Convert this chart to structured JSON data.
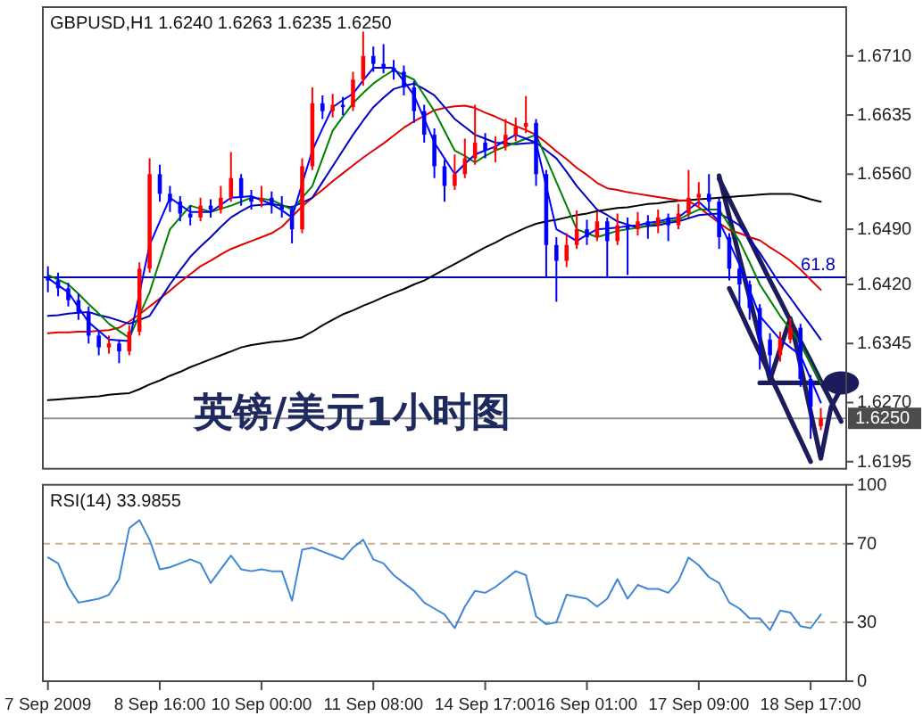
{
  "chart_data": [
    {
      "type": "candlestick",
      "title": "GBPUSD,H1 1.6240 1.6263 1.6235 1.6250",
      "annotations": [
        "英镑/美元1小时图",
        {
          "text": "61.8",
          "y": 1.6429
        }
      ],
      "categories": [
        null,
        null,
        null,
        null,
        null,
        null,
        null,
        null,
        null,
        null,
        null,
        null,
        null,
        null,
        null,
        null,
        null,
        null,
        null,
        null,
        null,
        null,
        null,
        null,
        null,
        null,
        null,
        null,
        null,
        null,
        null,
        null,
        null,
        null,
        null,
        null,
        null,
        null,
        null,
        null,
        null,
        null,
        null,
        null,
        null,
        null,
        null,
        null,
        null,
        null,
        null,
        null,
        null,
        null,
        null,
        null,
        null,
        null,
        null,
        null,
        null,
        null,
        null,
        null,
        null,
        null,
        null,
        null,
        null,
        null,
        null,
        null,
        null,
        null,
        null,
        null,
        null,
        null,
        null
      ],
      "ohlc": [
        [
          1.643,
          1.6443,
          1.641,
          1.6425
        ],
        [
          1.6425,
          1.6435,
          1.6405,
          1.6415
        ],
        [
          1.6415,
          1.6422,
          1.6392,
          1.64
        ],
        [
          1.64,
          1.6408,
          1.6375,
          1.6385
        ],
        [
          1.6385,
          1.6392,
          1.6345,
          1.6355
        ],
        [
          1.6355,
          1.6362,
          1.633,
          1.634
        ],
        [
          1.634,
          1.6355,
          1.6332,
          1.6345
        ],
        [
          1.6345,
          1.635,
          1.632,
          1.6335
        ],
        [
          1.6335,
          1.6368,
          1.633,
          1.636
        ],
        [
          1.636,
          1.6448,
          1.6355,
          1.644
        ],
        [
          1.644,
          1.658,
          1.6435,
          1.656
        ],
        [
          1.656,
          1.6572,
          1.6525,
          1.6535
        ],
        [
          1.6535,
          1.6545,
          1.6512,
          1.6525
        ],
        [
          1.6525,
          1.6532,
          1.65,
          1.651
        ],
        [
          1.651,
          1.652,
          1.6495,
          1.6505
        ],
        [
          1.6505,
          1.653,
          1.65,
          1.652
        ],
        [
          1.652,
          1.6528,
          1.6505,
          1.6515
        ],
        [
          1.6515,
          1.6545,
          1.651,
          1.653
        ],
        [
          1.653,
          1.6588,
          1.6525,
          1.6555
        ],
        [
          1.6555,
          1.656,
          1.652,
          1.653
        ],
        [
          1.653,
          1.654,
          1.6515,
          1.6525
        ],
        [
          1.6525,
          1.6545,
          1.6518,
          1.653
        ],
        [
          1.653,
          1.6538,
          1.651,
          1.652
        ],
        [
          1.652,
          1.6532,
          1.6505,
          1.6515
        ],
        [
          1.6515,
          1.652,
          1.6472,
          1.649
        ],
        [
          1.649,
          1.658,
          1.6485,
          1.657
        ],
        [
          1.657,
          1.667,
          1.6565,
          1.665
        ],
        [
          1.665,
          1.666,
          1.663,
          1.664
        ],
        [
          1.664,
          1.6662,
          1.6632,
          1.6648
        ],
        [
          1.6648,
          1.6658,
          1.6635,
          1.6645
        ],
        [
          1.6645,
          1.669,
          1.664,
          1.668
        ],
        [
          1.668,
          1.6741,
          1.6672,
          1.671
        ],
        [
          1.671,
          1.6722,
          1.669,
          1.67
        ],
        [
          1.67,
          1.6725,
          1.6688,
          1.6695
        ],
        [
          1.6695,
          1.6705,
          1.668,
          1.669
        ],
        [
          1.669,
          1.6698,
          1.666,
          1.667
        ],
        [
          1.667,
          1.6678,
          1.6625,
          1.664
        ],
        [
          1.664,
          1.6648,
          1.66,
          1.661
        ],
        [
          1.661,
          1.6618,
          1.6555,
          1.657
        ],
        [
          1.657,
          1.6578,
          1.6525,
          1.6545
        ],
        [
          1.6545,
          1.6585,
          1.654,
          1.656
        ],
        [
          1.656,
          1.6605,
          1.6555,
          1.658
        ],
        [
          1.658,
          1.6648,
          1.6572,
          1.66
        ],
        [
          1.66,
          1.6612,
          1.658,
          1.659
        ],
        [
          1.659,
          1.6608,
          1.6575,
          1.6595
        ],
        [
          1.6595,
          1.663,
          1.659,
          1.661
        ],
        [
          1.661,
          1.6632,
          1.6602,
          1.662
        ],
        [
          1.662,
          1.6659,
          1.6612,
          1.6625
        ],
        [
          1.6625,
          1.663,
          1.6545,
          1.656
        ],
        [
          1.656,
          1.6565,
          1.6429,
          1.647
        ],
        [
          1.647,
          1.648,
          1.6398,
          1.645
        ],
        [
          1.645,
          1.6485,
          1.6442,
          1.647
        ],
        [
          1.647,
          1.6514,
          1.6465,
          1.649
        ],
        [
          1.649,
          1.6502,
          1.647,
          1.648
        ],
        [
          1.648,
          1.6512,
          1.6475,
          1.65
        ],
        [
          1.65,
          1.6505,
          1.6429,
          1.6475
        ],
        [
          1.6475,
          1.651,
          1.647,
          1.6495
        ],
        [
          1.6495,
          1.6505,
          1.6432,
          1.649
        ],
        [
          1.649,
          1.6512,
          1.6482,
          1.65
        ],
        [
          1.65,
          1.6508,
          1.6478,
          1.6495
        ],
        [
          1.6495,
          1.6515,
          1.6485,
          1.6505
        ],
        [
          1.6505,
          1.651,
          1.6475,
          1.6495
        ],
        [
          1.6495,
          1.6522,
          1.649,
          1.651
        ],
        [
          1.651,
          1.6565,
          1.6505,
          1.653
        ],
        [
          1.653,
          1.655,
          1.652,
          1.6535
        ],
        [
          1.6535,
          1.656,
          1.6515,
          1.6525
        ],
        [
          1.6525,
          1.653,
          1.6465,
          1.648
        ],
        [
          1.648,
          1.6485,
          1.6425,
          1.644
        ],
        [
          1.644,
          1.6448,
          1.639,
          1.642
        ],
        [
          1.642,
          1.6425,
          1.6375,
          1.639
        ],
        [
          1.639,
          1.6395,
          1.6312,
          1.635
        ],
        [
          1.635,
          1.6358,
          1.6305,
          1.633
        ],
        [
          1.633,
          1.636,
          1.6322,
          1.635
        ],
        [
          1.635,
          1.6377,
          1.6345,
          1.6365
        ],
        [
          1.6365,
          1.637,
          1.629,
          1.63
        ],
        [
          1.63,
          1.6305,
          1.6224,
          1.6265
        ],
        [
          1.624,
          1.6263,
          1.6235,
          1.625
        ],
        null,
        null
      ],
      "colors": [
        "#0000ff",
        "#0000ff",
        "#0000ff",
        "#0000ff",
        "#0000ff",
        "#0000ff",
        "#ff0000",
        "#0000ff",
        "#ff0000",
        "#ff0000",
        "#ff0000",
        "#0000ff",
        "#0000ff",
        "#0000ff",
        "#0000ff",
        "#ff0000",
        "#0000ff",
        "#ff0000",
        "#ff0000",
        "#0000ff",
        "#0000ff",
        "#ff0000",
        "#0000ff",
        "#0000ff",
        "#0000ff",
        "#ff0000",
        "#ff0000",
        "#0000ff",
        "#ff0000",
        "#0000ff",
        "#ff0000",
        "#ff0000",
        "#0000ff",
        "#0000ff",
        "#0000ff",
        "#0000ff",
        "#0000ff",
        "#0000ff",
        "#0000ff",
        "#0000ff",
        "#ff0000",
        "#ff0000",
        "#ff0000",
        "#0000ff",
        "#ff0000",
        "#ff0000",
        "#ff0000",
        "#ff0000",
        "#0000ff",
        "#0000ff",
        "#0000ff",
        "#ff0000",
        "#ff0000",
        "#0000ff",
        "#ff0000",
        "#0000ff",
        "#ff0000",
        "#0000ff",
        "#ff0000",
        "#0000ff",
        "#ff0000",
        "#0000ff",
        "#ff0000",
        "#ff0000",
        "#ff0000",
        "#0000ff",
        "#0000ff",
        "#0000ff",
        "#0000ff",
        "#0000ff",
        "#0000ff",
        "#0000ff",
        "#ff0000",
        "#ff0000",
        "#0000ff",
        "#0000ff",
        "#ff0000",
        null,
        null
      ],
      "series": [
        {
          "type": "line",
          "color": "#1c1c5c",
          "values": [
            null,
            null,
            null,
            null,
            null,
            null,
            null,
            null,
            null,
            null,
            null,
            null,
            null,
            null,
            null,
            null,
            null,
            null,
            null,
            null,
            null,
            null,
            null,
            null,
            null,
            null,
            null,
            null,
            null,
            null,
            null,
            null,
            null,
            null,
            null,
            null,
            null,
            null,
            null,
            null,
            null,
            null,
            null,
            null,
            null,
            null,
            null,
            null,
            null,
            null,
            null,
            null,
            null,
            null,
            null,
            null,
            null,
            null,
            null,
            null,
            null,
            null,
            null,
            null,
            null,
            null,
            1.6554,
            1.6528,
            1.6502,
            1.6477,
            1.6451,
            1.6425,
            1.64,
            1.6374,
            1.6348,
            1.6323,
            1.6297,
            1.6272,
            1.6246
          ]
        },
        {
          "type": "line",
          "color": "#1c1c5c",
          "values": [
            null,
            null,
            null,
            null,
            null,
            null,
            null,
            null,
            null,
            null,
            null,
            null,
            null,
            null,
            null,
            null,
            null,
            null,
            null,
            null,
            null,
            null,
            null,
            null,
            null,
            null,
            null,
            null,
            null,
            null,
            null,
            null,
            null,
            null,
            null,
            null,
            null,
            null,
            null,
            null,
            null,
            null,
            null,
            null,
            null,
            null,
            null,
            null,
            null,
            null,
            null,
            null,
            null,
            null,
            null,
            null,
            null,
            null,
            null,
            null,
            null,
            null,
            null,
            null,
            null,
            null,
            null,
            1.6415,
            1.6388,
            1.636,
            1.6333,
            1.6305,
            1.6278,
            1.625,
            1.6223,
            1.6195,
            null,
            null,
            null
          ]
        },
        {
          "type": "line",
          "color": "#1c1c5c",
          "values": [
            null,
            null,
            null,
            null,
            null,
            null,
            null,
            null,
            null,
            null,
            null,
            null,
            null,
            null,
            null,
            null,
            null,
            null,
            null,
            null,
            null,
            null,
            null,
            null,
            null,
            null,
            null,
            null,
            null,
            null,
            null,
            null,
            null,
            null,
            null,
            null,
            null,
            null,
            null,
            null,
            null,
            null,
            null,
            null,
            null,
            null,
            null,
            null,
            null,
            null,
            null,
            null,
            null,
            null,
            null,
            null,
            null,
            null,
            null,
            null,
            null,
            null,
            null,
            null,
            null,
            null,
            1.6558,
            1.6506,
            1.6454,
            1.6403,
            1.6351,
            1.6299,
            1.6338,
            1.6377,
            1.6318,
            1.6258,
            1.6199,
            1.6264,
            1.6288
          ]
        },
        {
          "type": "line",
          "color": "#1c1c5c",
          "values": [
            null,
            null,
            null,
            null,
            null,
            null,
            null,
            null,
            null,
            null,
            null,
            null,
            null,
            null,
            null,
            null,
            null,
            null,
            null,
            null,
            null,
            null,
            null,
            null,
            null,
            null,
            null,
            null,
            null,
            null,
            null,
            null,
            null,
            null,
            null,
            null,
            null,
            null,
            null,
            null,
            null,
            null,
            null,
            null,
            null,
            null,
            null,
            null,
            null,
            null,
            null,
            null,
            null,
            null,
            null,
            null,
            null,
            null,
            null,
            null,
            null,
            null,
            null,
            null,
            null,
            null,
            null,
            null,
            null,
            null,
            1.6295,
            1.6295,
            1.6295,
            1.6295,
            1.6295,
            1.6295,
            1.6295,
            1.6295,
            1.6295
          ]
        },
        {
          "type": "line",
          "color": "#000000",
          "values": [
            1.6273,
            1.6274,
            1.6275,
            1.6276,
            1.6277,
            1.6278,
            1.628,
            1.6281,
            1.6282,
            1.6287,
            1.6293,
            1.6298,
            1.6304,
            1.6309,
            1.6315,
            1.632,
            1.6325,
            1.633,
            1.6335,
            1.634,
            1.6343,
            1.6345,
            1.6347,
            1.6348,
            1.635,
            1.6353,
            1.636,
            1.6368,
            1.6375,
            1.6382,
            1.6387,
            1.6393,
            1.6398,
            1.6404,
            1.6409,
            1.6414,
            1.642,
            1.6425,
            1.6432,
            1.6439,
            1.6446,
            1.6453,
            1.646,
            1.6467,
            1.6473,
            1.648,
            1.6486,
            1.6492,
            1.6497,
            1.65,
            1.6502,
            1.6505,
            1.6508,
            1.651,
            1.6513,
            1.6515,
            1.6517,
            1.6518,
            1.652,
            1.6522,
            1.6523,
            1.6525,
            1.6526,
            1.6527,
            1.6528,
            1.6529,
            1.653,
            1.6531,
            1.6532,
            1.6533,
            1.6534,
            1.6535,
            1.6535,
            1.6535,
            1.6532,
            1.6528,
            1.6525,
            null,
            null
          ]
        },
        {
          "type": "line",
          "color": "#e00000",
          "values": [
            1.6358,
            1.6359,
            1.6359,
            1.636,
            1.636,
            1.6361,
            1.6362,
            1.6365,
            1.6373,
            1.6382,
            1.6392,
            1.6402,
            1.6412,
            1.6423,
            1.6433,
            1.6443,
            1.645,
            1.6458,
            1.6465,
            1.647,
            1.6475,
            1.648,
            1.6485,
            1.6493,
            1.6506,
            1.6519,
            1.653,
            1.654,
            1.6551,
            1.6561,
            1.6571,
            1.6581,
            1.659,
            1.6599,
            1.6609,
            1.6619,
            1.6627,
            1.6634,
            1.6641,
            1.6644,
            1.6646,
            1.6647,
            1.6644,
            1.6638,
            1.6633,
            1.6627,
            1.6621,
            1.6616,
            1.661,
            1.66,
            1.6589,
            1.6579,
            1.6568,
            1.6559,
            1.6549,
            1.6542,
            1.654,
            1.6537,
            1.6535,
            1.6533,
            1.6531,
            1.6529,
            1.6527,
            1.6526,
            1.6518,
            1.6508,
            1.6498,
            1.6489,
            1.6485,
            1.648,
            1.6476,
            1.6467,
            1.6459,
            1.645,
            1.6439,
            1.6426,
            1.6413,
            null,
            null
          ]
        },
        {
          "type": "line",
          "color": "#0000c0",
          "values": [
            1.638,
            1.6381,
            1.6383,
            1.6384,
            1.6385,
            1.6381,
            1.6378,
            1.6374,
            1.637,
            1.6375,
            1.638,
            1.64,
            1.642,
            1.6438,
            1.6455,
            1.6468,
            1.648,
            1.6493,
            1.6505,
            1.6513,
            1.652,
            1.6521,
            1.6522,
            1.652,
            1.6518,
            1.6524,
            1.653,
            1.655,
            1.657,
            1.659,
            1.661,
            1.6628,
            1.6645,
            1.6657,
            1.6668,
            1.6672,
            1.6675,
            1.6668,
            1.666,
            1.6645,
            1.663,
            1.662,
            1.661,
            1.6605,
            1.66,
            1.6599,
            1.6598,
            1.6599,
            1.66,
            1.659,
            1.658,
            1.6563,
            1.6545,
            1.653,
            1.6515,
            1.6508,
            1.65,
            1.6496,
            1.6492,
            1.6494,
            1.6495,
            1.6498,
            1.65,
            1.6504,
            1.6508,
            1.6509,
            1.651,
            1.6503,
            1.6495,
            1.6478,
            1.646,
            1.644,
            1.642,
            1.6403,
            1.6385,
            1.6368,
            1.635,
            null,
            null
          ]
        },
        {
          "type": "line",
          "color": "#008000",
          "values": [
            1.6432,
            1.6426,
            1.642,
            1.6408,
            1.6395,
            1.6383,
            1.637,
            1.6361,
            1.6352,
            1.6381,
            1.641,
            1.645,
            1.649,
            1.6505,
            1.652,
            1.6516,
            1.6512,
            1.6516,
            1.652,
            1.6525,
            1.653,
            1.6529,
            1.6527,
            1.6521,
            1.6515,
            1.653,
            1.6545,
            1.658,
            1.6615,
            1.6633,
            1.665,
            1.6663,
            1.6675,
            1.6684,
            1.6692,
            1.6686,
            1.668,
            1.666,
            1.664,
            1.6615,
            1.659,
            1.6583,
            1.6575,
            1.6583,
            1.659,
            1.6595,
            1.66,
            1.6605,
            1.661,
            1.658,
            1.655,
            1.652,
            1.649,
            1.6485,
            1.648,
            1.6484,
            1.6488,
            1.649,
            1.6492,
            1.6495,
            1.6498,
            1.65,
            1.6502,
            1.6509,
            1.6515,
            1.6515,
            1.6515,
            1.6495,
            1.6475,
            1.6448,
            1.642,
            1.64,
            1.638,
            1.6363,
            1.6345,
            1.632,
            1.6295,
            null,
            null
          ]
        },
        {
          "type": "line",
          "color": "#0000ff",
          "values": [
            1.6428,
            1.6419,
            1.641,
            1.6391,
            1.6372,
            1.6361,
            1.635,
            1.6349,
            1.6348,
            1.6409,
            1.647,
            1.65,
            1.653,
            1.6521,
            1.6512,
            1.6512,
            1.6512,
            1.6521,
            1.653,
            1.6531,
            1.6532,
            1.6527,
            1.6522,
            1.6514,
            1.6505,
            1.6548,
            1.659,
            1.6618,
            1.6645,
            1.6654,
            1.6662,
            1.6679,
            1.6695,
            1.6695,
            1.6695,
            1.6678,
            1.666,
            1.663,
            1.66,
            1.658,
            1.656,
            1.6573,
            1.6585,
            1.659,
            1.6595,
            1.6603,
            1.661,
            1.6605,
            1.66,
            1.6545,
            1.649,
            1.6483,
            1.6475,
            1.6483,
            1.649,
            1.6491,
            1.6492,
            1.6494,
            1.6495,
            1.6498,
            1.65,
            1.6503,
            1.6505,
            1.6515,
            1.6525,
            1.6513,
            1.65,
            1.6473,
            1.6445,
            1.6413,
            1.638,
            1.6365,
            1.635,
            1.634,
            1.633,
            1.63,
            1.627,
            null,
            null
          ]
        }
      ],
      "ylim": [
        1.6186,
        1.6772
      ],
      "yticks": [
        {
          "value": 1.6195,
          "label": "1.6195"
        },
        {
          "value": 1.627,
          "label": "1.6270"
        },
        {
          "value": 1.6345,
          "label": "1.6345"
        },
        {
          "value": 1.642,
          "label": "1.6420"
        },
        {
          "value": 1.649,
          "label": "1.6490"
        },
        {
          "value": 1.656,
          "label": "1.6560"
        },
        {
          "value": 1.6635,
          "label": "1.6635"
        },
        {
          "value": 1.671,
          "label": "1.6710"
        }
      ],
      "ref_lines": [
        {
          "axis": "y",
          "value": 1.6429,
          "color": "#0000c0"
        },
        {
          "axis": "y",
          "value": 1.625,
          "label": "1.6250",
          "color": "#909090"
        }
      ]
    },
    {
      "type": "line",
      "title": "RSI(14) 33.9855",
      "categories": [
        "7 Sep 2009",
        null,
        null,
        null,
        null,
        null,
        null,
        null,
        null,
        null,
        null,
        "8 Sep 16:00",
        null,
        null,
        null,
        null,
        null,
        null,
        null,
        null,
        null,
        "10 Sep 00:00",
        null,
        null,
        null,
        null,
        null,
        null,
        null,
        null,
        null,
        null,
        "11 Sep 08:00",
        null,
        null,
        null,
        null,
        null,
        null,
        null,
        null,
        null,
        null,
        "14 Sep 17:00",
        null,
        null,
        null,
        null,
        null,
        null,
        null,
        null,
        null,
        "16 Sep 01:00",
        null,
        null,
        null,
        null,
        null,
        null,
        null,
        null,
        null,
        null,
        "17 Sep 09:00",
        null,
        null,
        null,
        null,
        null,
        null,
        null,
        null,
        null,
        null,
        "18 Sep 17:00",
        null,
        null,
        null
      ],
      "series": [
        {
          "color": "#3f86d6",
          "values": [
            63,
            60,
            48,
            40,
            41,
            42,
            44,
            52,
            78,
            82,
            72,
            57,
            58,
            60,
            62,
            60,
            50,
            57,
            64,
            57,
            56,
            57,
            56,
            56,
            41,
            67,
            68,
            66,
            64,
            62,
            68,
            72,
            62,
            60,
            54,
            50,
            46,
            40,
            37,
            34,
            27,
            38,
            46,
            45,
            48,
            52,
            56,
            54,
            33,
            29,
            30,
            44,
            43,
            42,
            38,
            42,
            52,
            42,
            49,
            47,
            47,
            45,
            51,
            63,
            59,
            53,
            50,
            40,
            37,
            32,
            32,
            26,
            36,
            35,
            28,
            27,
            34,
            null,
            null
          ]
        }
      ],
      "ylim": [
        0,
        100
      ],
      "yticks": [
        0,
        30,
        70,
        100
      ],
      "ref_lines": [
        {
          "axis": "y",
          "value": 30,
          "color": "#c8b090",
          "line_style": "dashed"
        },
        {
          "axis": "y",
          "value": 70,
          "color": "#c8b090",
          "line_style": "dashed"
        }
      ]
    }
  ]
}
